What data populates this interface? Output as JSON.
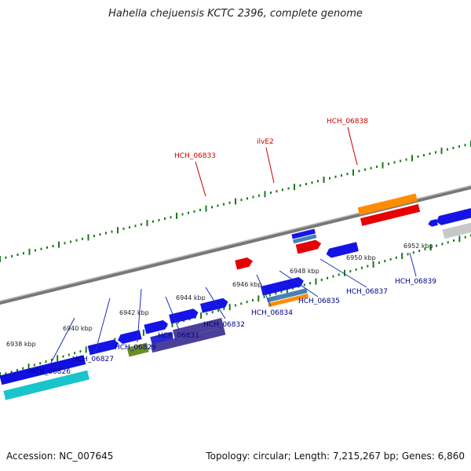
{
  "title": "Hahella chejuensis KCTC 2396, complete genome",
  "footer": {
    "accession": "Accession: NC_007645",
    "summary": "Topology: circular; Length: 7,215,267 bp; Genes: 6,860"
  },
  "colors": {
    "backbone": "#888888",
    "tick": "#1a7a1a",
    "label_top": "#cc0000",
    "label_bottom": "#00008b",
    "leader_top": "#cc0000",
    "leader_bottom": "#1c2fb8"
  },
  "scale": {
    "kbp_labels": [
      "6938 kbp",
      "6940 kbp",
      "6942 kbp",
      "6944 kbp",
      "6946 kbp",
      "6948 kbp",
      "6950 kbp",
      "6952 kbp"
    ]
  },
  "genes": [
    {
      "label": "HCH_06826",
      "color": "blue"
    },
    {
      "label": "HCH_06827",
      "color": "blue"
    },
    {
      "label": "HCH_06829",
      "color": "blue"
    },
    {
      "label": "HCH_06831",
      "color": "blue"
    },
    {
      "label": "HCH_06832",
      "color": "blue"
    },
    {
      "label": "HCH_06833",
      "color": "red"
    },
    {
      "label": "HCH_06834",
      "color": "blue"
    },
    {
      "label": "ilvE2",
      "color": "red"
    },
    {
      "label": "HCH_06835",
      "color": "blue"
    },
    {
      "label": "HCH_06837",
      "color": "blue"
    },
    {
      "label": "HCH_06838",
      "color": "orange"
    },
    {
      "label": "HCH_06839",
      "color": "blue"
    }
  ]
}
